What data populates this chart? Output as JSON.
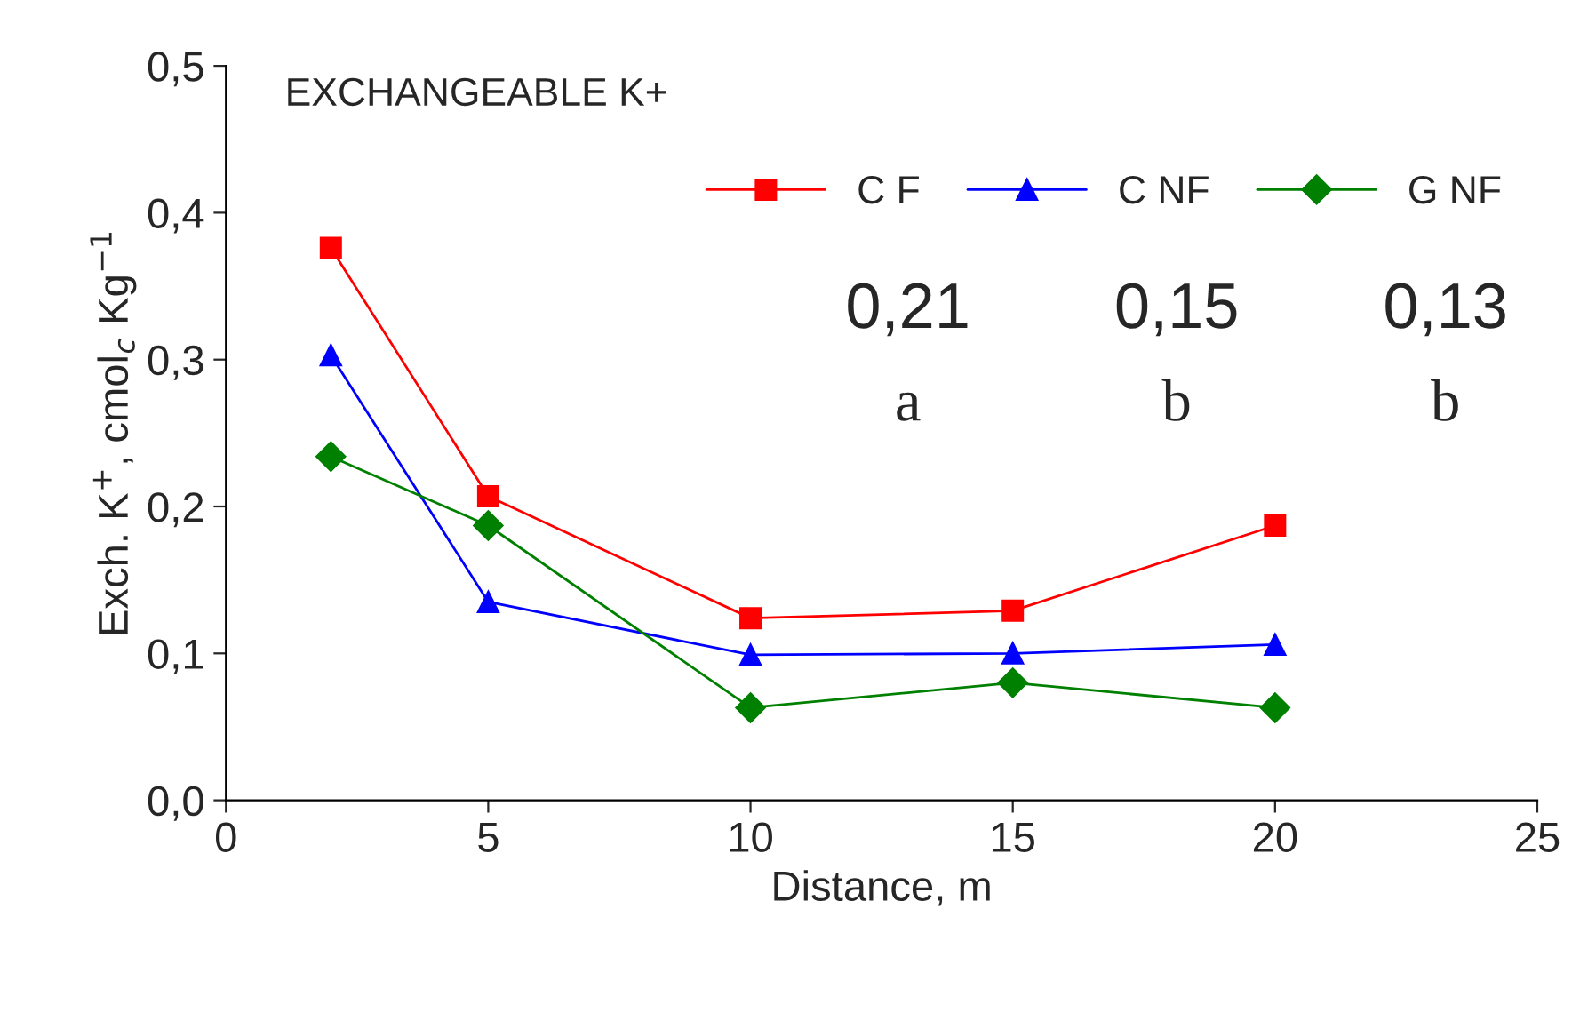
{
  "chart_data": {
    "type": "line",
    "title": "EXCHANGEABLE K+",
    "xlabel": "Distance, m",
    "ylabel": "Exch. K$^{+}$, cmol$_{c}$ Kg$^{−1}$",
    "x": [
      2,
      5,
      10,
      15,
      20
    ],
    "series": [
      {
        "name": "C F",
        "color": "#ff0000",
        "marker": "square",
        "values": [
          0.376,
          0.207,
          0.124,
          0.129,
          0.187
        ]
      },
      {
        "name": "C NF",
        "color": "#0000ff",
        "marker": "triangle",
        "values": [
          0.303,
          0.135,
          0.099,
          0.1,
          0.106
        ]
      },
      {
        "name": "G NF",
        "color": "#008000",
        "marker": "diamond",
        "values": [
          0.234,
          0.187,
          0.063,
          0.08,
          0.063
        ]
      }
    ],
    "xlim": [
      0,
      25
    ],
    "xticks": [
      0,
      5,
      10,
      15,
      20,
      25
    ],
    "ylim": [
      0,
      0.5
    ],
    "yticks": [
      {
        "value": 0,
        "label": "0,0"
      },
      {
        "value": 0.1,
        "label": "0,1"
      },
      {
        "value": 0.2,
        "label": "0,2"
      },
      {
        "value": 0.3,
        "label": "0,3"
      },
      {
        "value": 0.4,
        "label": "0,4"
      },
      {
        "value": 0.5,
        "label": "0,5"
      }
    ],
    "annotations": [
      "0,21",
      "0,15",
      "0,13",
      "a",
      "b",
      "b"
    ],
    "legend": "top right",
    "grid": false
  }
}
